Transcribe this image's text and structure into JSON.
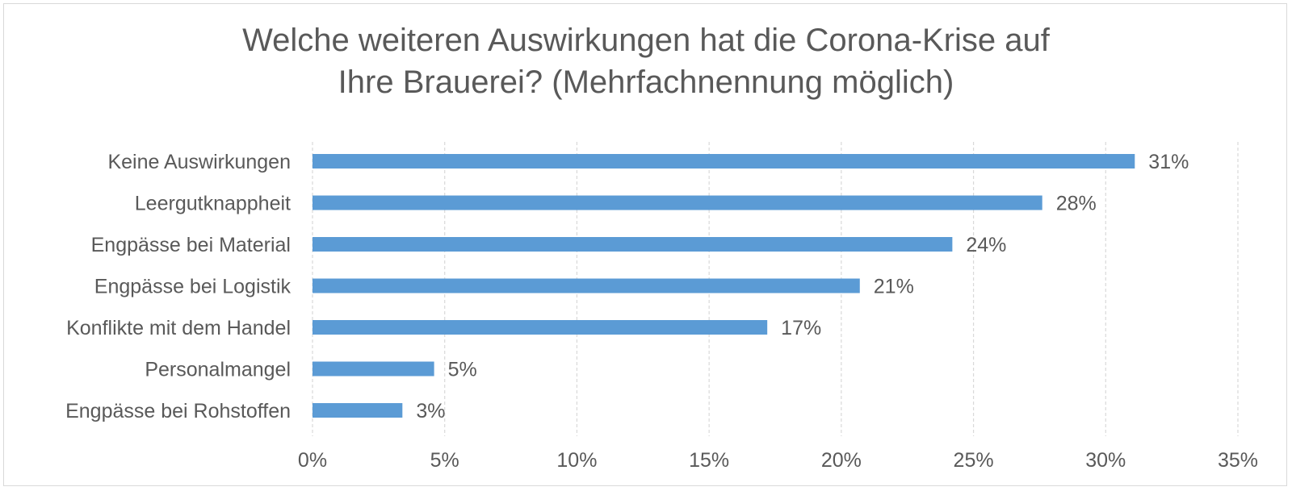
{
  "chart_data": {
    "type": "bar",
    "orientation": "horizontal",
    "title": [
      "Welche weiteren Auswirkungen hat die Corona-Krise auf",
      "Ihre Brauerei? (Mehrfachnennung möglich)"
    ],
    "categories": [
      "Keine Auswirkungen",
      "Leergutknappheit",
      "Engpässe bei Material",
      "Engpässe bei Logistik",
      "Konflikte mit dem Handel",
      "Personalmangel",
      "Engpässe bei Rohstoffen"
    ],
    "values": [
      31.1,
      27.6,
      24.2,
      20.7,
      17.2,
      4.6,
      3.4
    ],
    "data_labels": [
      "31%",
      "28%",
      "24%",
      "21%",
      "17%",
      "5%",
      "3%"
    ],
    "xlim": [
      0,
      35
    ],
    "xticks": [
      0,
      5,
      10,
      15,
      20,
      25,
      30,
      35
    ],
    "xtick_labels": [
      "0%",
      "5%",
      "10%",
      "15%",
      "20%",
      "25%",
      "30%",
      "35%"
    ],
    "grid": "vertical-dashed",
    "legend": "none",
    "colors": {
      "bar": "#5b9bd5",
      "text": "#595959",
      "grid": "#d9d9d9"
    }
  }
}
